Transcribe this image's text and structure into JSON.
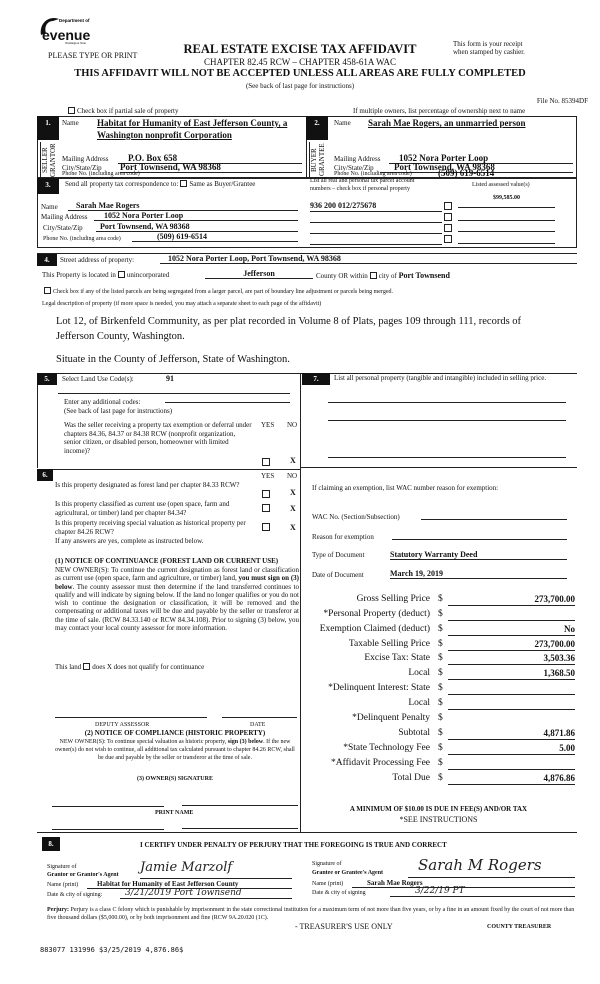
{
  "header": {
    "logo_text": "Department of Revenue Washington State",
    "type_or_print": "PLEASE TYPE OR PRINT",
    "title": "REAL ESTATE EXCISE TAX AFFIDAVIT",
    "chapter": "CHAPTER 82.45 RCW – CHAPTER 458-61A WAC",
    "warning": "THIS AFFIDAVIT WILL NOT BE ACCEPTED UNLESS ALL AREAS ARE FULLY COMPLETED",
    "see_back": "(See back of last page for instructions)",
    "receipt_note_1": "This form is your receipt",
    "receipt_note_2": "when stamped by cashier.",
    "file_no": "File No. 85394DF",
    "partial_sale": "Check box if partial sale of property",
    "multiple_owners": "If multiple owners, list percentage of ownership next to name"
  },
  "section1": {
    "num": "1.",
    "side": "SELLER GRANTOR",
    "name_label": "Name",
    "name_1": "Habitat for Humanity of East Jefferson County, a",
    "name_2": "Washington nonprofit Corporation",
    "mail_label": "Mailing Address",
    "mail": "P.O. Box 658",
    "city_label": "City/State/Zip",
    "city": "Port Townsend, WA 98368",
    "phone_label": "Phone No. (including area code)",
    "phone": ""
  },
  "section2": {
    "num": "2.",
    "side": "BUYER GRANTEE",
    "name_label": "Name",
    "name": "Sarah Mae Rogers, an unmarried person",
    "mail_label": "Mailing Address",
    "mail": "1052 Nora Porter Loop",
    "city_label": "City/State/Zip",
    "city": "Port Townsend, WA 98368",
    "phone_label": "Phone No. (including area code)",
    "phone": "(509) 619-6514"
  },
  "section3": {
    "num": "3.",
    "send_label": "Send all property tax correspondence to:",
    "same_label": "Same as Buyer/Grantee",
    "name_label": "Name",
    "name": "Sarah Mae Rogers",
    "mail_label": "Mailing Address",
    "mail": "1052 Nora Porter Loop",
    "city_label": "City/State/Zip",
    "city": "Port Townsend, WA 98368",
    "phone_label": "Phone No. (including area code)",
    "phone": "(509) 619-6514",
    "parcel_header_1": "List all real and personal tax parcel account",
    "parcel_header_2": "numbers – check box if personal property",
    "assessed_header": "Listed assessed value(s)",
    "parcels": [
      {
        "number": "936 200 012/275678",
        "value": "$99,585.00"
      },
      {
        "number": "",
        "value": ""
      },
      {
        "number": "",
        "value": ""
      },
      {
        "number": "",
        "value": ""
      }
    ]
  },
  "section4": {
    "num": "4.",
    "street_label": "Street address of property:",
    "street": "1052 Nora Porter Loop, Port Townsend, WA  98368",
    "located_label": "This Property is located in",
    "unincorporated": "unincorporated",
    "county": "Jefferson",
    "county_or": "County OR  within",
    "city_of": "city of",
    "city": "Port Townsend",
    "segregated": "Check box if any of the listed parcels are being segregated from a larger parcel, are part of boundary line adjustment or parcels being merged.",
    "legal_label": "Legal description of property (if more space is needed, you may attach a separate sheet to each page of the affidavit)",
    "legal_1": "Lot 12, of Birkenfeld Community, as per plat recorded in Volume 8 of Plats, pages 109 through 111, records of",
    "legal_2": "Jefferson County, Washington.",
    "legal_3": "Situate in the County of Jefferson, State of Washington."
  },
  "section5": {
    "num": "5.",
    "code_label": "Select Land Use Code(s):",
    "code": "91",
    "additional_label": "Enter any additional codes:",
    "additional_note": "(See back of last page for instructions)",
    "question": "Was the seller receiving a property tax exemption or deferral under chapters 84.36, 84.37 or 84.38 RCW (nonprofit organization, senior citizen, or disabled person, homeowner with limited income)?",
    "yes": "YES",
    "no": "NO",
    "answer": "X"
  },
  "section6": {
    "num": "6.",
    "yes": "YES",
    "no": "NO",
    "questions": [
      {
        "text": "Is this property designated as forest land per chapter 84.33 RCW?",
        "answer": "X"
      },
      {
        "text": "Is this property classified as current use (open space, farm and agricultural, or timber) land per chapter 84.34?",
        "answer": "X"
      },
      {
        "text": "Is this property receiving special valuation as historical property per chapter 84.26 RCW?",
        "answer": "X"
      }
    ],
    "if_yes": "If any answers are yes, complete as instructed below.",
    "notice1_title": "(1) NOTICE OF CONTINUANCE (FOREST LAND OR CURRENT USE)",
    "notice1_a": "NEW OWNER(S): To continue the current designation as forest land or classification as current use (open space, farm and agriculture, or timber) land, ",
    "notice1_bold": "you must sign on (3) below",
    "notice1_b": ". The county assessor must then determine if the land transferred continues to qualify and will indicate by signing below. If the land no longer qualifies or you do not wish to continue the designation or classification, it will be removed and the compensating or additional taxes will be due and payable by the seller or transferor at the time of sale. (RCW 84.33.140 or RCW 84.34.108). Prior to signing (3) below, you may contact your local county assessor for more information.",
    "this_land": "This land",
    "does": "does",
    "does_not": "X does not  qualify for continuance",
    "deputy": "DEPUTY ASSESSOR",
    "date": "DATE",
    "notice2_title": "(2) NOTICE OF COMPLIANCE (HISTORIC PROPERTY)",
    "notice2_a": "NEW OWNER(S): To continue special valuation as historic property, ",
    "notice2_bold": "sign (3) below",
    "notice2_b": ". If the new owner(s) do not wish to continue, all additional tax calculated pursuant to chapter 84.26 RCW, shall be due and payable by the seller or transferor at the time of sale.",
    "owner_sig": "(3)  OWNER(S) SIGNATURE",
    "print_name": "PRINT NAME"
  },
  "section7": {
    "num": "7.",
    "label": "List all personal property (tangible and intangible) included in selling price.",
    "exemption_label": "If claiming an exemption, list WAC number reason for exemption:",
    "wac_label": "WAC No. (Section/Subsection)",
    "reason_label": "Reason for exemption",
    "doc_type_label": "Type of Document",
    "doc_type": "Statutory Warranty Deed",
    "doc_date_label": "Date of Document",
    "doc_date": "March 19, 2019"
  },
  "tax": {
    "currency": "$",
    "rows": [
      {
        "label": "Gross Selling Price",
        "value": "273,700.00"
      },
      {
        "label": "*Personal Property (deduct)",
        "value": ""
      },
      {
        "label": "Exemption Claimed (deduct)",
        "value": "No"
      },
      {
        "label": "Taxable Selling Price",
        "value": "273,700.00"
      },
      {
        "label": "Excise Tax:  State",
        "value": "3,503.36"
      },
      {
        "label": "Local",
        "value": "1,368.50"
      },
      {
        "label": "*Delinquent Interest:  State",
        "value": ""
      },
      {
        "label": "Local",
        "value": ""
      },
      {
        "label": "*Delinquent Penalty",
        "value": ""
      },
      {
        "label": "Subtotal",
        "value": "4,871.86"
      },
      {
        "label": "*State Technology Fee",
        "value": "5.00"
      },
      {
        "label": "*Affidavit Processing Fee",
        "value": ""
      },
      {
        "label": "Total Due",
        "value": "4,876.86"
      }
    ],
    "minimum": "A MINIMUM OF $10.00 IS DUE IN FEE(S) AND/OR TAX",
    "see_instructions": "*SEE INSTRUCTIONS"
  },
  "section8": {
    "num": "8.",
    "certify": "I CERTIFY UNDER PENALTY OF PERJURY THAT THE FOREGOING IS TRUE AND CORRECT",
    "grantor_sig_1": "Signature of",
    "grantor_sig_2": "Grantor or Grantor's Agent",
    "grantor_signature": "Jamie Marzolf",
    "name_label": "Name (print)",
    "grantor_name": "Habitat for Humanity of East Jefferson County",
    "date_label_l": "Date & city of signing:",
    "grantor_date": "3/21/2019  Port Townsend",
    "grantee_sig_1": "Signature of",
    "grantee_sig_2": "Grantee or Grantee's Agent",
    "grantee_signature": "Sarah M Rogers",
    "grantee_name": "Sarah Mae Rogers",
    "date_label_r": "Date & city of signing",
    "grantee_date": "3/22/19  PT",
    "perjury_label": "Perjury:",
    "perjury": "Perjury is a class C felony which is punishable by imprisonment in the state correctional institution for a maximum term of not more than five years, or by a fine in an amount fixed by the court of not more than five thousand dollars ($5,000.00), or by both imprisonment and fine (RCW 9A.20.020 (1C).",
    "treasurer_use": "- TREASURER'S USE ONLY",
    "county_treasurer": "COUNTY TREASURER"
  },
  "receipt_stamp": "883077 131996 $3/25/2019 4,876.86$"
}
